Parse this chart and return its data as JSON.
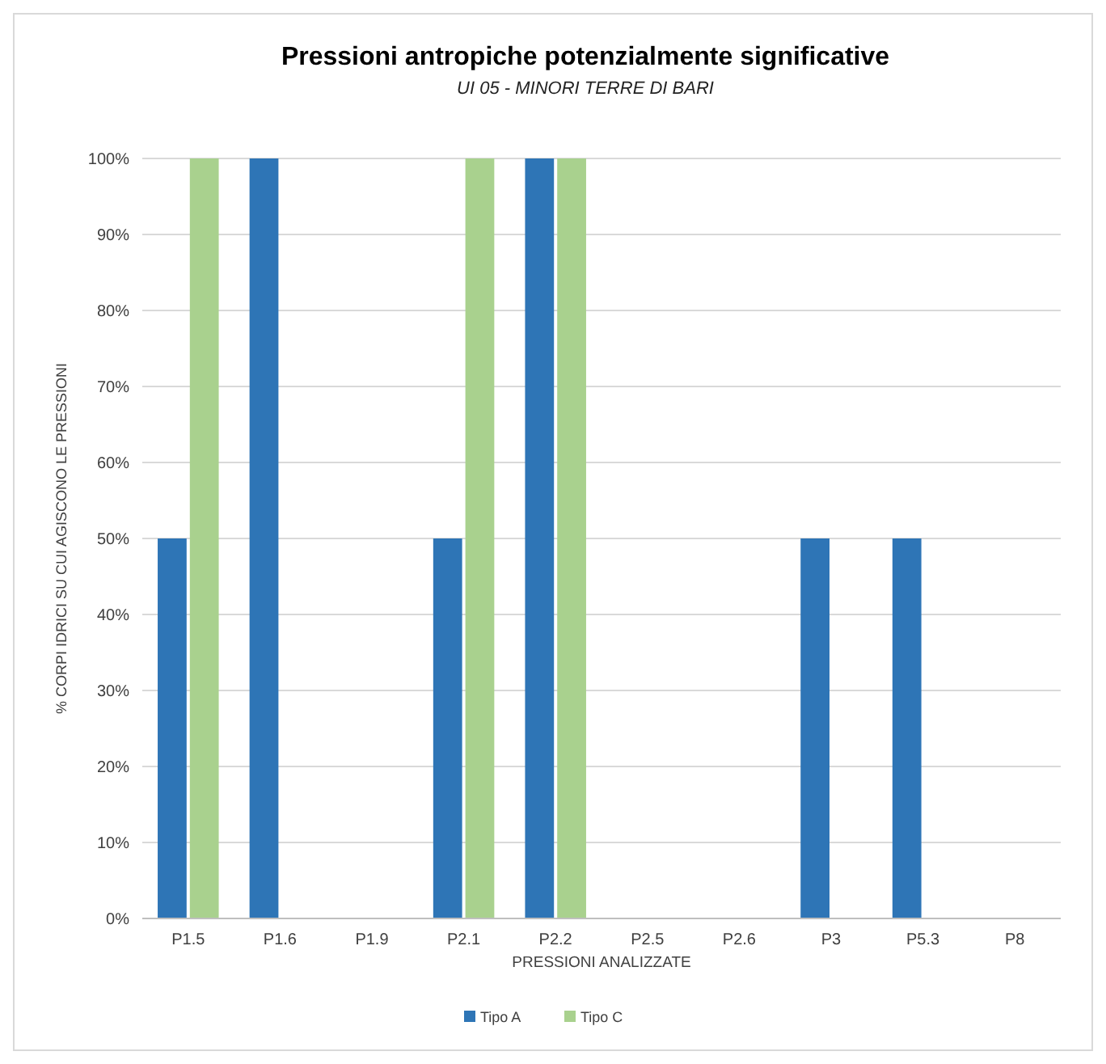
{
  "chart_data": {
    "type": "bar",
    "title": "Pressioni antropiche potenzialmente significative",
    "subtitle": "UI 05 - MINORI TERRE DI BARI",
    "xlabel": "PRESSIONI ANALIZZATE",
    "ylabel": "% CORPI IDRICI SU CUI AGISCONO LE PRESSIONI",
    "categories": [
      "P1.5",
      "P1.6",
      "P1.9",
      "P2.1",
      "P2.2",
      "P2.5",
      "P2.6",
      "P3",
      "P5.3",
      "P8"
    ],
    "series": [
      {
        "name": "Tipo A",
        "color": "#2e75b6",
        "values": [
          50,
          100,
          0,
          50,
          100,
          0,
          0,
          50,
          50,
          0
        ]
      },
      {
        "name": "Tipo C",
        "color": "#a9d18e",
        "values": [
          100,
          0,
          0,
          100,
          100,
          0,
          0,
          0,
          0,
          0
        ]
      }
    ],
    "ylim": [
      0,
      100
    ],
    "yticks": [
      {
        "value": 0,
        "label": "0%"
      },
      {
        "value": 10,
        "label": "10%"
      },
      {
        "value": 20,
        "label": "20%"
      },
      {
        "value": 30,
        "label": "30%"
      },
      {
        "value": 40,
        "label": "40%"
      },
      {
        "value": 50,
        "label": "50%"
      },
      {
        "value": 60,
        "label": "60%"
      },
      {
        "value": 70,
        "label": "70%"
      },
      {
        "value": 80,
        "label": "80%"
      },
      {
        "value": 90,
        "label": "90%"
      },
      {
        "value": 100,
        "label": "100%"
      }
    ],
    "grid": "y",
    "legend": "bottom"
  }
}
